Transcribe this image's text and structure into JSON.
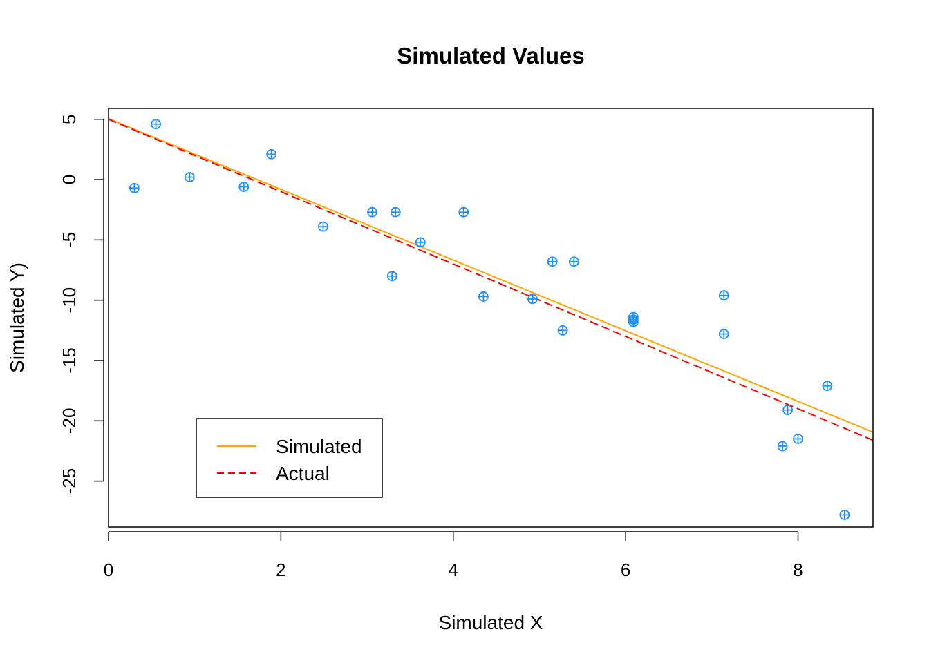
{
  "chart_data": {
    "type": "scatter",
    "title": "Simulated Values",
    "xlabel": "Simulated X",
    "ylabel": "Simulated Y)",
    "xlim": [
      0,
      8.87
    ],
    "ylim": [
      -28.8,
      5.9
    ],
    "x_ticks": [
      {
        "value": 0,
        "label": "0"
      },
      {
        "value": 2,
        "label": "2"
      },
      {
        "value": 4,
        "label": "4"
      },
      {
        "value": 6,
        "label": "6"
      },
      {
        "value": 8,
        "label": "8"
      }
    ],
    "y_ticks": [
      {
        "value": 5,
        "label": "5"
      },
      {
        "value": 0,
        "label": "0"
      },
      {
        "value": -5,
        "label": "-5"
      },
      {
        "value": -10,
        "label": "-10"
      },
      {
        "value": -15,
        "label": "-15"
      },
      {
        "value": -20,
        "label": "-20"
      },
      {
        "value": -25,
        "label": "-25"
      }
    ],
    "points": {
      "color": "#1E90FF",
      "marker": "circle-plus",
      "x": [
        0.3,
        0.55,
        0.94,
        1.57,
        1.89,
        2.49,
        3.06,
        3.29,
        3.33,
        3.62,
        4.12,
        4.35,
        4.92,
        5.15,
        5.27,
        5.4,
        6.09,
        6.09,
        6.09,
        7.14,
        7.14,
        7.82,
        7.88,
        8.0,
        8.34,
        8.54
      ],
      "y": [
        -0.7,
        4.6,
        0.2,
        -0.6,
        2.1,
        -3.9,
        -2.7,
        -8.0,
        -2.7,
        -5.2,
        -2.7,
        -9.7,
        -9.9,
        -6.8,
        -12.5,
        -6.8,
        -11.4,
        -11.6,
        -11.8,
        -9.6,
        -12.8,
        -22.1,
        -19.1,
        -21.5,
        -17.1,
        -27.8
      ]
    },
    "series": [
      {
        "name": "Simulated",
        "type": "line",
        "color": "#FFA500",
        "dash": "solid",
        "intercept": 5.05,
        "slope": -2.93
      },
      {
        "name": "Actual",
        "type": "line",
        "color": "#FF0000",
        "dash": "dashed",
        "intercept": 5.0,
        "slope": -3.0
      }
    ],
    "grid": false,
    "legend_position": "bottom-left"
  }
}
